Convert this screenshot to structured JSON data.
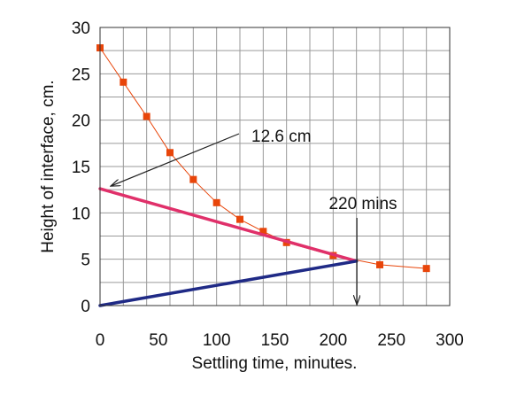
{
  "chart_data": {
    "type": "line",
    "xlabel": "Settling time, minutes.",
    "ylabel": "Height of interface, cm.",
    "xlim": [
      0,
      300
    ],
    "ylim": [
      0,
      30
    ],
    "x_ticks": [
      "0",
      "50",
      "100",
      "150",
      "200",
      "250",
      "300"
    ],
    "y_ticks": [
      "0",
      "5",
      "10",
      "15",
      "20",
      "25",
      "30"
    ],
    "grid": true,
    "series": [
      {
        "color": "#e8450a",
        "marker": "square",
        "points": [
          [
            0,
            27.8
          ],
          [
            20,
            24.1
          ],
          [
            40,
            20.4
          ],
          [
            60,
            16.5
          ],
          [
            80,
            13.6
          ],
          [
            100,
            11.1
          ],
          [
            120,
            9.3
          ],
          [
            140,
            8.0
          ],
          [
            160,
            6.8
          ],
          [
            200,
            5.4
          ],
          [
            240,
            4.4
          ],
          [
            280,
            4.0
          ]
        ]
      },
      {
        "color": "#e0306a",
        "marker": "none",
        "points": [
          [
            0,
            12.6
          ],
          [
            220,
            4.8
          ]
        ]
      },
      {
        "color": "#1f2a86",
        "marker": "none",
        "points": [
          [
            0,
            0
          ],
          [
            220,
            4.8
          ]
        ]
      }
    ],
    "annotations": [
      {
        "text": "12.6 cm",
        "points_to": [
          0,
          12.6
        ]
      },
      {
        "text": "220 mins",
        "points_to": [
          220,
          0
        ]
      }
    ]
  }
}
